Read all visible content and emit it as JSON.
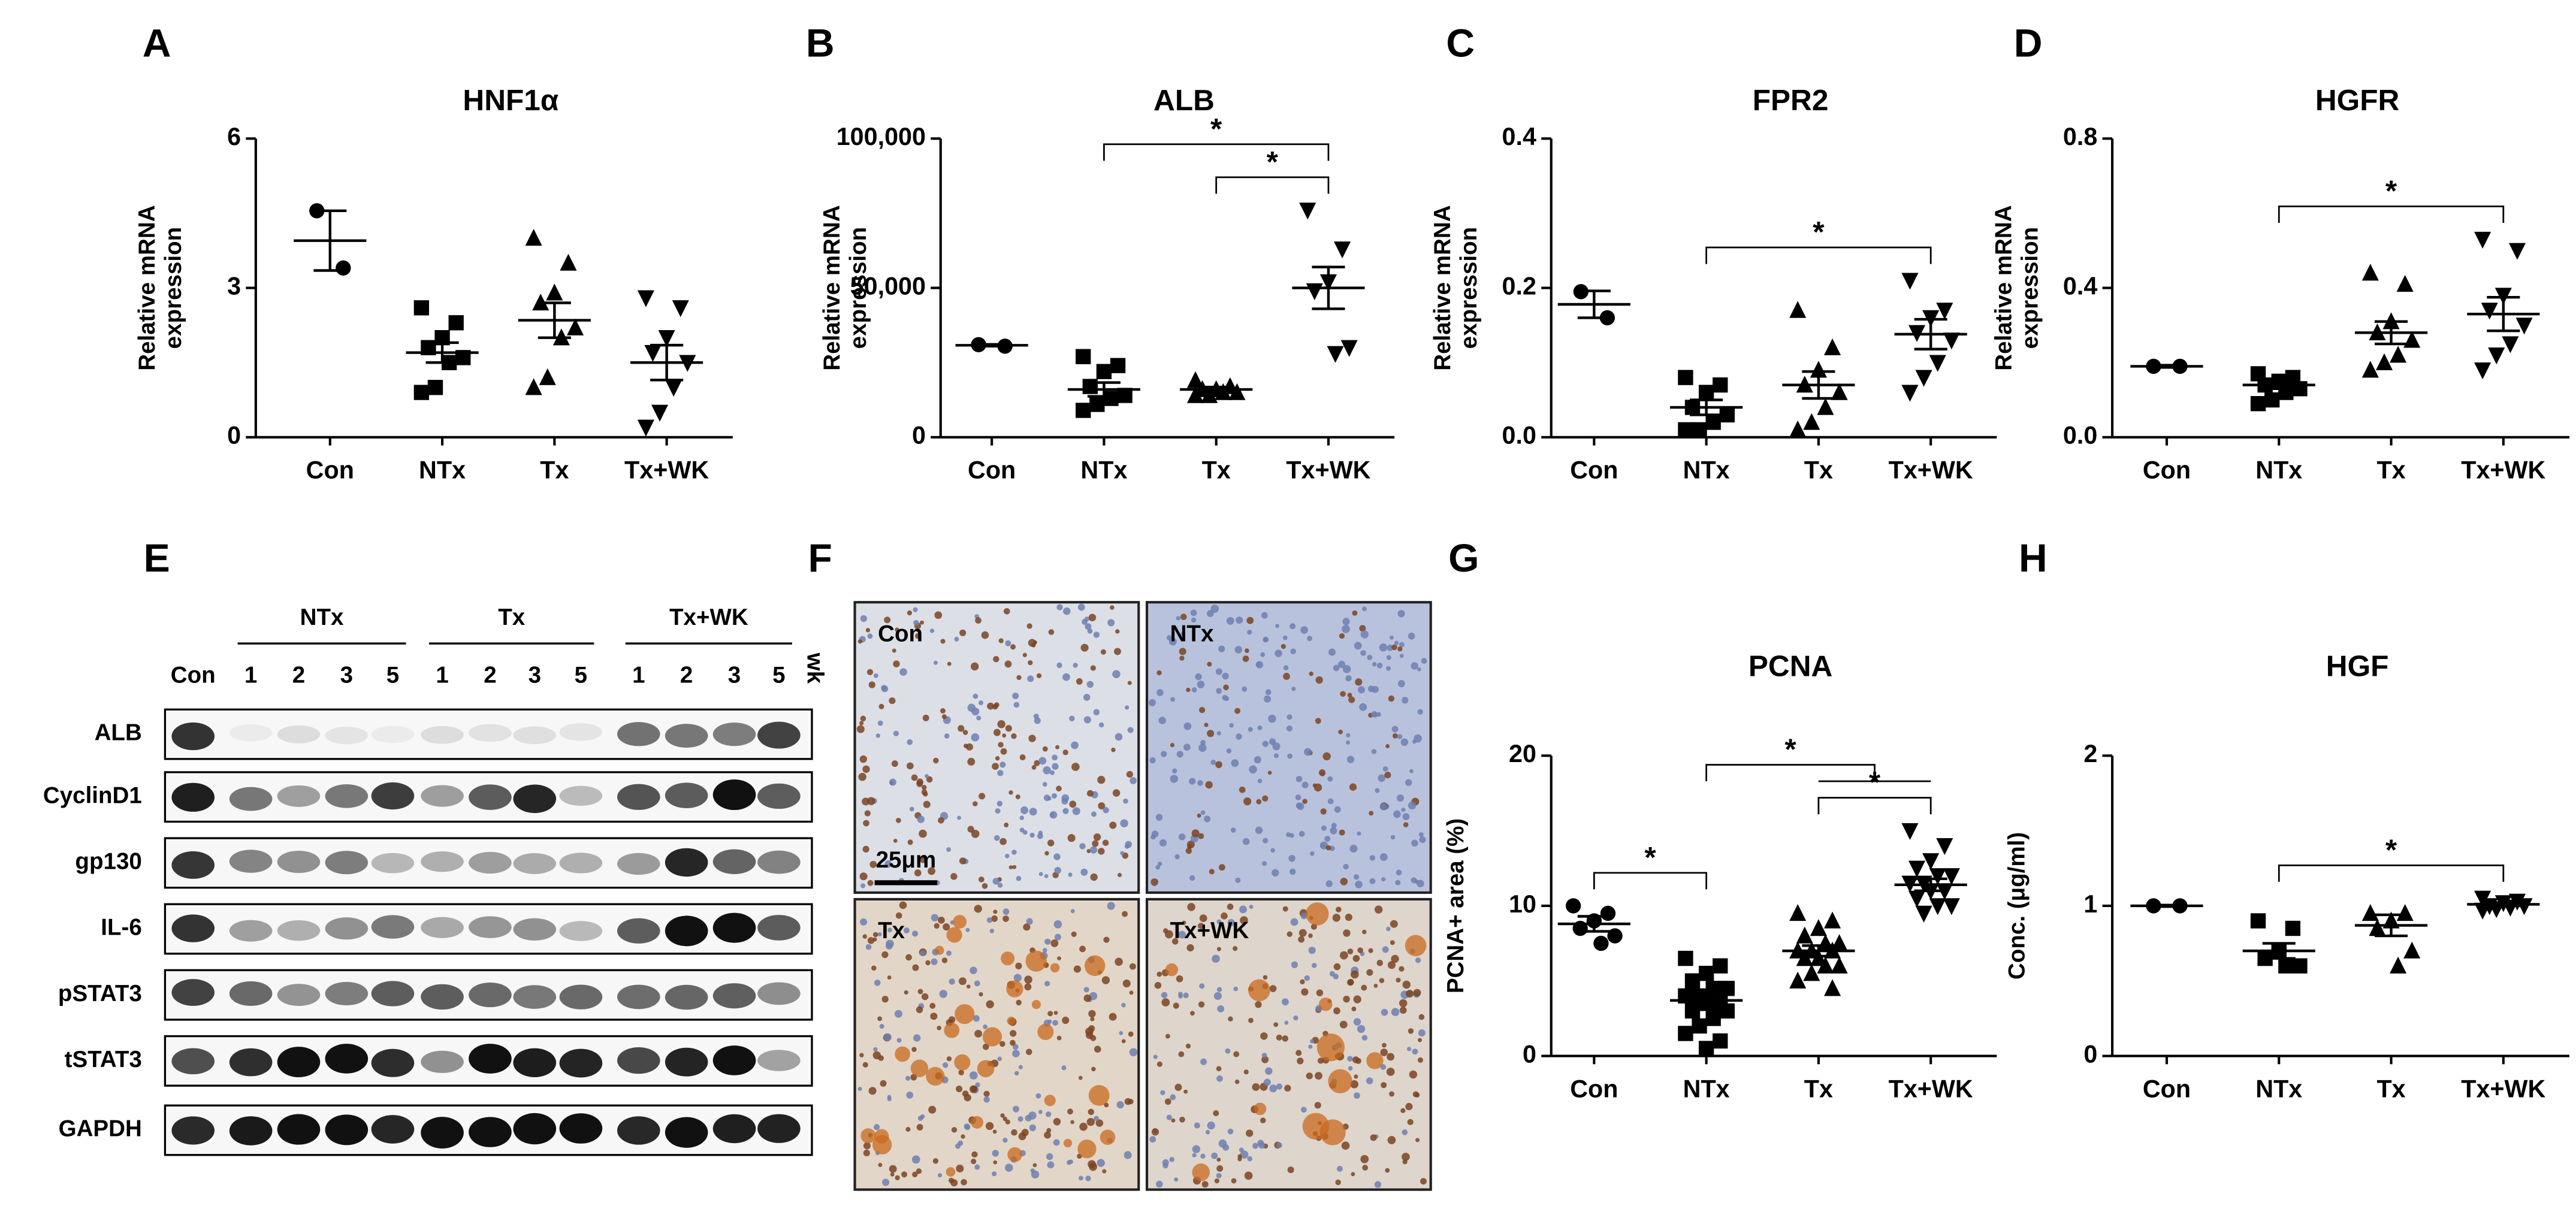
{
  "chart_data": [
    {
      "type": "dotplot",
      "panel": "A",
      "title": "HNF1α",
      "ylabel": [
        "Relative mRNA",
        "expression"
      ],
      "categories": [
        "Con",
        "NTx",
        "Tx",
        "Tx+WK"
      ],
      "markers": [
        "circle",
        "square",
        "triangle",
        "triangle-down"
      ],
      "color": "#000000",
      "values": [
        [
          4.55,
          3.4
        ],
        [
          2.6,
          2.3,
          2.0,
          1.8,
          1.6,
          1.5,
          1.0,
          0.9
        ],
        [
          4.0,
          3.5,
          2.9,
          2.7,
          2.2,
          2.0,
          1.2,
          1.0
        ],
        [
          2.8,
          2.6,
          2.0,
          1.7,
          1.5,
          1.0,
          0.5,
          0.2
        ]
      ],
      "means": [
        3.95,
        1.7,
        2.35,
        1.5
      ],
      "sems": [
        0.6,
        0.2,
        0.35,
        0.35
      ],
      "ylim": [
        0,
        6
      ],
      "yticks": [
        0,
        3,
        6
      ],
      "brackets": []
    },
    {
      "type": "dotplot",
      "panel": "B",
      "title": "ALB",
      "ylabel": [
        "Relative mRNA",
        "expression"
      ],
      "categories": [
        "Con",
        "NTx",
        "Tx",
        "Tx+WK"
      ],
      "markers": [
        "circle",
        "square",
        "triangle",
        "triangle-down"
      ],
      "color": "#000000",
      "values": [
        [
          31000,
          30500
        ],
        [
          27000,
          24000,
          22000,
          17000,
          14000,
          13000,
          11000,
          9000
        ],
        [
          19000,
          17000,
          16000,
          16000,
          15000,
          15000,
          14000,
          14000
        ],
        [
          76000,
          63000,
          52000,
          49000,
          30000,
          28000
        ]
      ],
      "means": [
        30800,
        16000,
        16000,
        50000
      ],
      "sems": [
        300,
        2300,
        800,
        7000
      ],
      "ylim": [
        0,
        100000
      ],
      "yticks": [
        0,
        {
          "value": 50000,
          "label": "50,000"
        },
        {
          "value": 100000,
          "label": "100,000"
        }
      ],
      "brackets": [
        {
          "from": 2,
          "to": [
            3
          ],
          "label": "*"
        },
        {
          "from": 1,
          "to": [
            3
          ],
          "label": "*"
        }
      ]
    },
    {
      "type": "dotplot",
      "panel": "C",
      "title": "FPR2",
      "ylabel": [
        "Relative mRNA",
        "expression"
      ],
      "categories": [
        "Con",
        "NTx",
        "Tx",
        "Tx+WK"
      ],
      "markers": [
        "circle",
        "square",
        "triangle",
        "triangle-down"
      ],
      "color": "#000000",
      "values": [
        [
          0.195,
          0.16
        ],
        [
          0.08,
          0.07,
          0.06,
          0.04,
          0.03,
          0.02,
          0.01,
          0.01
        ],
        [
          0.17,
          0.12,
          0.09,
          0.07,
          0.06,
          0.04,
          0.02,
          0.01
        ],
        [
          0.21,
          0.17,
          0.16,
          0.14,
          0.13,
          0.1,
          0.08,
          0.06
        ]
      ],
      "means": [
        0.178,
        0.04,
        0.07,
        0.138
      ],
      "sems": [
        0.018,
        0.01,
        0.018,
        0.02
      ],
      "ylim": [
        0,
        0.4
      ],
      "yticks": [
        {
          "value": 0,
          "label": "0.0"
        },
        0.2,
        0.4
      ],
      "brackets": [
        {
          "from": 1,
          "to": [
            3
          ],
          "label": "*"
        }
      ]
    },
    {
      "type": "dotplot",
      "panel": "D",
      "title": "HGFR",
      "ylabel": [
        "Relative mRNA",
        "expression"
      ],
      "categories": [
        "Con",
        "NTx",
        "Tx",
        "Tx+WK"
      ],
      "markers": [
        "circle",
        "square",
        "triangle",
        "triangle-down"
      ],
      "color": "#000000",
      "values": [
        [
          0.19,
          0.19
        ],
        [
          0.17,
          0.16,
          0.15,
          0.14,
          0.13,
          0.12,
          0.1,
          0.09
        ],
        [
          0.44,
          0.41,
          0.31,
          0.28,
          0.26,
          0.22,
          0.2,
          0.18
        ],
        [
          0.53,
          0.5,
          0.38,
          0.34,
          0.3,
          0.25,
          0.22,
          0.18
        ]
      ],
      "means": [
        0.19,
        0.14,
        0.28,
        0.33
      ],
      "sems": [
        0.003,
        0.01,
        0.03,
        0.045
      ],
      "ylim": [
        0,
        0.8
      ],
      "yticks": [
        {
          "value": 0,
          "label": "0.0"
        },
        0.4,
        0.8
      ],
      "brackets": [
        {
          "from": 1,
          "to": [
            3
          ],
          "label": "*"
        }
      ]
    },
    {
      "type": "dotplot",
      "panel": "G",
      "title": "PCNA",
      "ylabel": [
        "PCNA+ area (%)"
      ],
      "categories": [
        "Con",
        "NTx",
        "Tx",
        "Tx+WK"
      ],
      "markers": [
        "circle",
        "square",
        "triangle",
        "triangle-down"
      ],
      "color": "#000000",
      "values": [
        [
          10,
          9.5,
          9,
          8.5,
          8,
          7.5
        ],
        [
          6.5,
          6,
          5.5,
          5,
          4.5,
          4.5,
          4,
          4,
          3.5,
          3.5,
          3,
          3,
          2.5,
          2,
          1.5,
          1,
          0.5
        ],
        [
          9.5,
          9,
          8.5,
          8,
          7.5,
          7.5,
          7,
          7,
          7,
          6.5,
          6.5,
          6,
          6,
          5.5,
          5,
          4.5
        ],
        [
          15,
          14,
          13,
          12.5,
          12,
          12,
          11.5,
          11.5,
          11,
          11,
          10.5,
          10,
          10,
          9.5
        ]
      ],
      "means": [
        8.8,
        3.7,
        7,
        11.4
      ],
      "sems": [
        0.5,
        0.4,
        0.35,
        0.4
      ],
      "ylim": [
        0,
        20
      ],
      "yticks": [
        0,
        10,
        20
      ],
      "brackets": [
        {
          "from": 0,
          "to": [
            1
          ],
          "label": "*"
        },
        {
          "from": 2,
          "to": [
            3
          ],
          "label": "*"
        },
        {
          "from": 1,
          "to": [
            2,
            3
          ],
          "label": "*"
        }
      ]
    },
    {
      "type": "dotplot",
      "panel": "H",
      "title": "HGF",
      "ylabel": [
        "Conc. (μg/ml)"
      ],
      "categories": [
        "Con",
        "NTx",
        "Tx",
        "Tx+WK"
      ],
      "markers": [
        "circle",
        "square",
        "triangle",
        "triangle-down"
      ],
      "color": "#000000",
      "values": [
        [
          1.0,
          1.0
        ],
        [
          0.9,
          0.85,
          0.7,
          0.65,
          0.6,
          0.6
        ],
        [
          0.95,
          0.95,
          0.9,
          0.85,
          0.7,
          0.6
        ],
        [
          1.05,
          1.03,
          1.02,
          1.0,
          1.0,
          0.99,
          0.98,
          0.97
        ]
      ],
      "means": [
        1.0,
        0.7,
        0.87,
        1.01
      ],
      "sems": [
        0.005,
        0.05,
        0.07,
        0.01
      ],
      "ylim": [
        0,
        2
      ],
      "yticks": [
        0,
        1,
        2
      ],
      "brackets": [
        {
          "from": 1,
          "to": [
            3
          ],
          "label": "*"
        }
      ]
    }
  ],
  "western_blot": {
    "panel": "E",
    "control": "Con",
    "unit": "wk",
    "groups": [
      {
        "name": "NTx",
        "lanes": [
          "1",
          "2",
          "3",
          "5"
        ]
      },
      {
        "name": "Tx",
        "lanes": [
          "1",
          "2",
          "3",
          "5"
        ]
      },
      {
        "name": "Tx+WK",
        "lanes": [
          "1",
          "2",
          "3",
          "5"
        ]
      }
    ],
    "rows": [
      "ALB",
      "CyclinD1",
      "gp130",
      "IL-6",
      "pSTAT3",
      "tSTAT3",
      "GAPDH"
    ]
  },
  "histology": {
    "panel": "F",
    "images": [
      "Con",
      "NTx",
      "Tx",
      "Tx+WK"
    ],
    "scale_bar": "25μm"
  }
}
